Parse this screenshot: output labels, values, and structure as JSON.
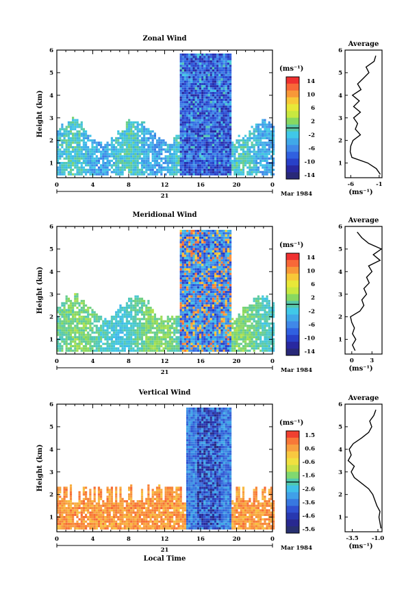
{
  "chart_data": [
    {
      "type": "heatmap",
      "title": "Zonal Wind",
      "ylabel": "Height (km)",
      "y_ticks": [
        "1",
        "2",
        "3",
        "4",
        "5",
        "6"
      ],
      "ylim": [
        0.5,
        6
      ],
      "x_ticks": [
        "0",
        "4",
        "8",
        "12",
        "16",
        "20",
        "0"
      ],
      "xlim": [
        0,
        24
      ],
      "day_label": "21",
      "date_label": "Mar 1984",
      "colorbar": {
        "unit": "(ms⁻¹)",
        "ticks": [
          "14",
          "10",
          "6",
          "2",
          "-2",
          "-6",
          "-10",
          "-14"
        ],
        "range": [
          -16,
          16
        ],
        "colors": [
          "#ef3030",
          "#f86838",
          "#f89838",
          "#f8c838",
          "#e8e838",
          "#c8e840",
          "#88d860",
          "#58c8a8",
          "#40c8e8",
          "#40a8e8",
          "#4088e8",
          "#3060e0",
          "#2840c8",
          "#2828a0",
          "#282878"
        ]
      },
      "shading": "wind-speed field, dense 0.5–2.7 km, convective column 14–19 LT up to 5.8 km",
      "profile": {
        "title": "Average",
        "xlabel": "(ms⁻¹)",
        "x_ticks": [
          "-6",
          "-1"
        ],
        "xlim": [
          -7,
          -0.5
        ],
        "y": [
          0.5,
          0.75,
          1,
          1.25,
          1.5,
          1.75,
          2,
          2.25,
          2.5,
          2.75,
          3,
          3.25,
          3.5,
          3.75,
          4,
          4.25,
          4.5,
          4.75,
          5,
          5.25,
          5.5,
          5.75
        ],
        "x": [
          -0.8,
          -1.5,
          -3.0,
          -5.8,
          -6.1,
          -6.0,
          -5.6,
          -4.3,
          -5.2,
          -4.8,
          -5.5,
          -4.3,
          -5.5,
          -4.5,
          -5.7,
          -4.2,
          -4.8,
          -3.8,
          -2.8,
          -3.3,
          -1.9,
          -1.6
        ]
      }
    },
    {
      "type": "heatmap",
      "title": "Meridional Wind",
      "ylabel": "Height (km)",
      "y_ticks": [
        "1",
        "2",
        "3",
        "4",
        "5",
        "6"
      ],
      "ylim": [
        0.5,
        6
      ],
      "x_ticks": [
        "0",
        "4",
        "8",
        "12",
        "16",
        "20",
        "0"
      ],
      "xlim": [
        0,
        24
      ],
      "day_label": "21",
      "date_label": "Mar 1984",
      "colorbar": {
        "unit": "(ms⁻¹)",
        "ticks": [
          "14",
          "10",
          "6",
          "2",
          "-2",
          "-6",
          "-10",
          "-14"
        ],
        "range": [
          -16,
          16
        ],
        "colors": [
          "#ef3030",
          "#f86838",
          "#f89838",
          "#f8c838",
          "#e8e838",
          "#c8e840",
          "#88d860",
          "#58c8a8",
          "#40c8e8",
          "#40a8e8",
          "#4088e8",
          "#3060e0",
          "#2840c8",
          "#2828a0",
          "#282878"
        ]
      },
      "shading": "wind-speed field, dense 0.5–2.7 km, convective column 13–19 LT up to 5.8 km",
      "profile": {
        "title": "Average",
        "xlabel": "(ms⁻¹)",
        "x_ticks": [
          "0",
          "3"
        ],
        "xlim": [
          -1,
          4.5
        ],
        "y": [
          0.5,
          0.75,
          1,
          1.25,
          1.5,
          1.75,
          2,
          2.25,
          2.5,
          2.75,
          3,
          3.25,
          3.5,
          3.75,
          4,
          4.25,
          4.5,
          4.75,
          5,
          5.25,
          5.5,
          5.75
        ],
        "x": [
          0.5,
          0.1,
          0.6,
          0.1,
          0.4,
          0.0,
          -0.2,
          1.2,
          1.8,
          1.5,
          2.2,
          1.8,
          2.6,
          2.2,
          3.0,
          2.5,
          4.2,
          3.2,
          4.4,
          2.5,
          1.5,
          0.8
        ]
      }
    },
    {
      "type": "heatmap",
      "title": "Vertical Wind",
      "ylabel": "Height (km)",
      "xlabel": "Local Time",
      "y_ticks": [
        "1",
        "2",
        "3",
        "4",
        "5",
        "6"
      ],
      "ylim": [
        0.5,
        6
      ],
      "x_ticks": [
        "0",
        "4",
        "8",
        "12",
        "16",
        "20",
        "0"
      ],
      "xlim": [
        0,
        24
      ],
      "day_label": "21",
      "date_label": "Mar 1984",
      "colorbar": {
        "unit": "(ms⁻¹)",
        "ticks": [
          "1.5",
          "0.6",
          "-0.6",
          "-1.6",
          "-2.6",
          "-3.6",
          "-4.6",
          "-5.6"
        ],
        "range": [
          -6.2,
          2.0
        ],
        "colors": [
          "#f04030",
          "#f87838",
          "#f8a040",
          "#f8c840",
          "#f0e040",
          "#c8e048",
          "#80d870",
          "#50c8b0",
          "#40c0e8",
          "#40a0e8",
          "#3878e0",
          "#3050d0",
          "#2838b0",
          "#282890",
          "#283070"
        ]
      },
      "shading": "vertical velocity, weak updraft 0.5–2.2 km, strong downdraft 14–19 LT",
      "profile": {
        "title": "Average",
        "xlabel": "(ms⁻¹)",
        "x_ticks": [
          "-3.5",
          "-1.0"
        ],
        "xlim": [
          -4.2,
          -0.6
        ],
        "y": [
          0.5,
          0.75,
          1,
          1.25,
          1.5,
          1.75,
          2,
          2.25,
          2.5,
          2.75,
          3,
          3.25,
          3.5,
          3.75,
          4,
          4.25,
          4.5,
          4.75,
          5,
          5.25,
          5.5,
          5.75
        ],
        "x": [
          -0.7,
          -0.8,
          -0.9,
          -0.8,
          -1.1,
          -1.3,
          -1.5,
          -1.9,
          -2.6,
          -3.3,
          -3.6,
          -3.3,
          -3.9,
          -3.6,
          -3.8,
          -3.4,
          -2.6,
          -1.9,
          -1.6,
          -1.8,
          -1.4,
          -1.2
        ]
      }
    }
  ]
}
